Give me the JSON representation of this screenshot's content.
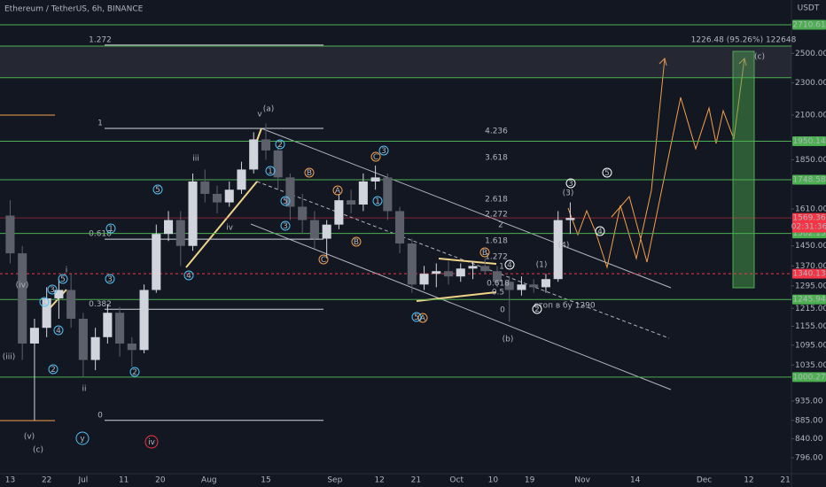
{
  "chart_data": {
    "type": "candlestick",
    "title": "Ethereum / TetherUS, 6h, BINANCE",
    "currency": "USDT",
    "countdown": "02:31:36",
    "log_scale": true,
    "up_color": "#d1d4dc",
    "down_color": "#5d606b",
    "categories": [
      null,
      null,
      "13",
      null,
      null,
      null,
      null,
      null,
      null,
      null,
      null,
      "22",
      null,
      null,
      null,
      null,
      null,
      null,
      null,
      null,
      "Jul",
      null,
      null,
      null,
      null,
      null,
      null,
      null,
      null,
      null,
      "11",
      null,
      null,
      null,
      null,
      null,
      null,
      null,
      null,
      "20",
      null,
      null,
      null,
      null,
      null,
      null,
      null,
      null,
      null,
      null,
      null,
      "Aug",
      null,
      null,
      null,
      null,
      null,
      null,
      null,
      null,
      null,
      null,
      null,
      null,
      null,
      "15",
      null,
      null,
      null,
      null,
      null,
      null,
      null,
      null,
      null,
      null,
      null,
      null,
      null,
      null,
      null,
      null,
      "Sep",
      null,
      null,
      null,
      null,
      null,
      null,
      null,
      null,
      null,
      null,
      "12",
      null,
      null,
      null,
      null,
      null,
      null,
      null,
      null,
      "21",
      null,
      null,
      null,
      null,
      null,
      null,
      null,
      null,
      null,
      "Oct",
      null,
      null,
      null,
      null,
      null,
      null,
      null,
      null,
      "10",
      null,
      null,
      null,
      null,
      null,
      null,
      null,
      null,
      "19",
      null,
      null,
      null,
      null,
      null,
      null,
      null,
      null,
      null,
      null,
      null,
      null,
      "Nov",
      null,
      null,
      null,
      null,
      null,
      null,
      null,
      null,
      null,
      null,
      null,
      null,
      "14",
      null,
      null,
      null,
      null,
      null,
      null,
      null,
      null,
      null,
      null,
      null,
      null,
      null,
      null,
      null,
      null,
      "Dec",
      null,
      null,
      null,
      null,
      null,
      null,
      null,
      null,
      null,
      null,
      "12",
      null,
      null,
      null,
      null,
      null,
      null,
      null,
      null,
      "21",
      null
    ],
    "open": [
      null,
      null,
      1580,
      null,
      null,
      1420,
      null,
      null,
      1100,
      null,
      null,
      1150,
      null,
      null,
      1250,
      null,
      null,
      1280,
      null,
      null,
      1180,
      null,
      null,
      1050,
      null,
      null,
      1120,
      null,
      null,
      1200,
      null,
      null,
      1100,
      null,
      null,
      1080,
      null,
      null,
      1280,
      null,
      null,
      1500,
      null,
      null,
      1560,
      null,
      null,
      1450,
      null,
      null,
      1740,
      null,
      null,
      1680,
      null,
      null,
      1640,
      null,
      null,
      1700,
      null,
      null,
      1800,
      null,
      null,
      1960,
      null,
      null,
      1900,
      null,
      null,
      1760,
      null,
      null,
      1620,
      null,
      null,
      1560,
      null,
      null,
      1480,
      null,
      null,
      1540,
      null,
      null,
      1650,
      null,
      null,
      1630,
      null,
      null,
      1740,
      null,
      null,
      1760,
      null,
      null,
      1600,
      null,
      null,
      1460,
      null,
      null,
      1300,
      null,
      null,
      1340,
      null,
      null,
      1350,
      null,
      null,
      1330,
      null,
      null,
      1360,
      null,
      null,
      1370,
      null,
      null,
      1350,
      null,
      null,
      1310,
      null,
      null,
      1280,
      null,
      null,
      1300,
      null,
      null,
      1290,
      null,
      null,
      1320,
      null,
      null,
      1560,
      null,
      null,
      null,
      null,
      null,
      null,
      null,
      null,
      null,
      null,
      null,
      null,
      null,
      null,
      null,
      null,
      null,
      null,
      null,
      null,
      null,
      null,
      null,
      null,
      null,
      null,
      null,
      null,
      null,
      null,
      null,
      null,
      null,
      null,
      null,
      null,
      null,
      null,
      null,
      null,
      null,
      null,
      null,
      null,
      null,
      null,
      null,
      null,
      null,
      null,
      null,
      null,
      null,
      null
    ],
    "high": [
      null,
      null,
      1650,
      null,
      null,
      1450,
      null,
      null,
      1180,
      null,
      null,
      1290,
      null,
      null,
      1320,
      null,
      null,
      1340,
      null,
      null,
      1200,
      null,
      null,
      1150,
      null,
      null,
      1230,
      null,
      null,
      1220,
      null,
      null,
      1120,
      null,
      null,
      1300,
      null,
      null,
      1540,
      null,
      null,
      1600,
      null,
      null,
      1600,
      null,
      null,
      1780,
      null,
      null,
      1800,
      null,
      null,
      1720,
      null,
      null,
      1740,
      null,
      null,
      1840,
      null,
      null,
      2000,
      null,
      null,
      2050,
      null,
      null,
      1920,
      null,
      null,
      1780,
      null,
      null,
      1680,
      null,
      null,
      1600,
      null,
      null,
      1560,
      null,
      null,
      1680,
      null,
      null,
      1700,
      null,
      null,
      1780,
      null,
      null,
      1820,
      null,
      null,
      1780,
      null,
      null,
      1620,
      null,
      null,
      1480,
      null,
      null,
      1370,
      null,
      null,
      1380,
      null,
      null,
      1390,
      null,
      null,
      1380,
      null,
      null,
      1390,
      null,
      null,
      1400,
      null,
      null,
      1370,
      null,
      null,
      1330,
      null,
      null,
      1330,
      null,
      null,
      1320,
      null,
      null,
      1340,
      null,
      null,
      1600,
      null,
      null,
      1640,
      null,
      null,
      null,
      null,
      null,
      null,
      null,
      null,
      null,
      null,
      null,
      null,
      null,
      null,
      null,
      null,
      null,
      null,
      null,
      null,
      null,
      null,
      null,
      null,
      null,
      null,
      null,
      null,
      null,
      null,
      null,
      null,
      null,
      null,
      null,
      null,
      null,
      null,
      null,
      null,
      null,
      null,
      null,
      null,
      null,
      null,
      null,
      null,
      null,
      null,
      null,
      null,
      null,
      null
    ],
    "low": [
      null,
      null,
      1380,
      null,
      null,
      1050,
      null,
      null,
      885,
      null,
      null,
      1120,
      null,
      null,
      1180,
      null,
      null,
      1150,
      null,
      null,
      1000,
      null,
      null,
      1020,
      null,
      null,
      1100,
      null,
      null,
      1060,
      null,
      null,
      1030,
      null,
      null,
      1070,
      null,
      null,
      1270,
      null,
      null,
      1470,
      null,
      null,
      1370,
      null,
      null,
      1430,
      null,
      null,
      1640,
      null,
      null,
      1590,
      null,
      null,
      1620,
      null,
      null,
      1680,
      null,
      null,
      1780,
      null,
      null,
      1850,
      null,
      null,
      1700,
      null,
      null,
      1560,
      null,
      null,
      1500,
      null,
      null,
      1440,
      null,
      null,
      1400,
      null,
      null,
      1520,
      null,
      null,
      1590,
      null,
      null,
      1600,
      null,
      null,
      1700,
      null,
      null,
      1560,
      null,
      null,
      1420,
      null,
      null,
      1270,
      null,
      null,
      1280,
      null,
      null,
      1290,
      null,
      null,
      1300,
      null,
      null,
      1310,
      null,
      null,
      1320,
      null,
      null,
      1340,
      null,
      null,
      1290,
      null,
      null,
      1170,
      null,
      null,
      1260,
      null,
      null,
      1270,
      null,
      null,
      1270,
      null,
      null,
      1310,
      null,
      null,
      1500,
      null,
      null,
      null,
      null,
      null,
      null,
      null,
      null,
      null,
      null,
      null,
      null,
      null,
      null,
      null,
      null,
      null,
      null,
      null,
      null,
      null,
      null,
      null,
      null,
      null,
      null,
      null,
      null,
      null,
      null,
      null,
      null,
      null,
      null,
      null,
      null,
      null,
      null,
      null,
      null,
      null,
      null,
      null,
      null,
      null,
      null,
      null,
      null,
      null,
      null,
      null,
      null,
      null,
      null
    ],
    "close": [
      null,
      null,
      1420,
      null,
      null,
      1100,
      null,
      null,
      1150,
      null,
      null,
      1250,
      null,
      null,
      1280,
      null,
      null,
      1180,
      null,
      null,
      1050,
      null,
      null,
      1120,
      null,
      null,
      1200,
      null,
      null,
      1100,
      null,
      null,
      1080,
      null,
      null,
      1280,
      null,
      null,
      1500,
      null,
      null,
      1560,
      null,
      null,
      1450,
      null,
      null,
      1740,
      null,
      null,
      1680,
      null,
      null,
      1640,
      null,
      null,
      1700,
      null,
      null,
      1800,
      null,
      null,
      1960,
      null,
      null,
      1900,
      null,
      null,
      1760,
      null,
      null,
      1620,
      null,
      null,
      1560,
      null,
      null,
      1480,
      null,
      null,
      1540,
      null,
      null,
      1650,
      null,
      null,
      1630,
      null,
      null,
      1740,
      null,
      null,
      1760,
      null,
      null,
      1600,
      null,
      null,
      1460,
      null,
      null,
      1300,
      null,
      null,
      1340,
      null,
      null,
      1350,
      null,
      null,
      1330,
      null,
      null,
      1360,
      null,
      null,
      1370,
      null,
      null,
      1350,
      null,
      null,
      1310,
      null,
      null,
      1280,
      null,
      null,
      1300,
      null,
      null,
      1290,
      null,
      null,
      1320,
      null,
      null,
      1560,
      null,
      null,
      1569.36,
      null,
      null,
      null,
      null,
      null,
      null,
      null,
      null,
      null,
      null,
      null,
      null,
      null,
      null,
      null,
      null,
      null,
      null,
      null,
      null,
      null,
      null,
      null,
      null,
      null,
      null,
      null,
      null,
      null,
      null,
      null,
      null,
      null,
      null,
      null,
      null,
      null,
      null,
      null,
      null,
      null,
      null,
      null,
      null,
      null,
      null,
      null,
      null,
      null,
      null,
      null,
      null,
      null,
      null
    ],
    "ylim": [
      761,
      2908
    ],
    "yticks": [
      {
        "value": 2500,
        "label": "2500.00"
      },
      {
        "value": 2300,
        "label": "2300.00"
      },
      {
        "value": 2100,
        "label": "2100.00"
      },
      {
        "value": 1850,
        "label": "1850.00"
      },
      {
        "value": 1610,
        "label": "1610.00"
      },
      {
        "value": 1450,
        "label": "1450.00"
      },
      {
        "value": 1370,
        "label": "1370.00"
      },
      {
        "value": 1295,
        "label": "1295.00"
      },
      {
        "value": 1215,
        "label": "1215.00"
      },
      {
        "value": 1155,
        "label": "1155.00"
      },
      {
        "value": 1095,
        "label": "1095.00"
      },
      {
        "value": 1035,
        "label": "1035.00"
      },
      {
        "value": 935,
        "label": "935.00"
      },
      {
        "value": 885,
        "label": "885.00"
      },
      {
        "value": 840,
        "label": "840.00"
      },
      {
        "value": 796,
        "label": "796.00"
      }
    ],
    "zone": [
      2334,
      2553
    ],
    "price_lines": [
      {
        "value": 2710.61,
        "color": "#4caf50"
      },
      {
        "value": 1950.14,
        "color": "#4caf50"
      },
      {
        "value": 1748.58,
        "color": "#4caf50"
      },
      {
        "value": 1502.15,
        "color": "#4caf50"
      },
      {
        "value": 1245.94,
        "color": "#4caf50"
      },
      {
        "value": 1000.27,
        "color": "#4caf50"
      },
      {
        "value": 1340.13,
        "color": "#f23645",
        "dashed": true
      },
      {
        "value": 1569.36,
        "color": "#f23645",
        "current": true
      }
    ],
    "fib_levels": [
      {
        "label": "1.272",
        "value": 2560
      },
      {
        "label": "1",
        "value": 2022
      },
      {
        "label": "0.618",
        "value": 1478
      },
      {
        "label": "0.382",
        "value": 1212
      },
      {
        "label": "0",
        "value": 885
      }
    ],
    "annotations": [
      "(a)",
      "v",
      "iii",
      "iv",
      "i",
      "ii",
      "(iv)",
      "(iii)",
      "(v)",
      "(c)",
      "y",
      "iv",
      "(b)",
      "(c)",
      "1226.48 (95.26%) 122648",
      "стоп в бу 1290",
      "4.236",
      "3.618",
      "2.618",
      "2.272",
      "2",
      "1.618",
      "1.272",
      "1",
      "0.618",
      "0.5",
      "0",
      "3",
      "5",
      "4",
      "4",
      "2",
      "(3)",
      "(4)",
      "(1)",
      "A",
      "B",
      "C",
      "B",
      "A",
      "C",
      "B",
      "3",
      "1",
      "2",
      "5",
      "3",
      "4",
      "5",
      "3",
      "1",
      "2",
      "4",
      "5",
      "3",
      "1",
      "2",
      "1",
      "5"
    ]
  }
}
